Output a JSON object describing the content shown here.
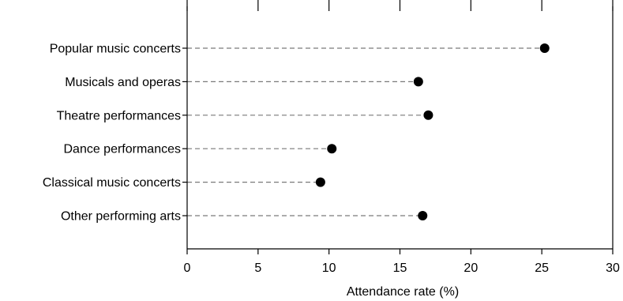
{
  "chart_data": {
    "type": "scatter",
    "title": "",
    "xlabel": "Attendance rate (%)",
    "ylabel": "",
    "xlim": [
      0,
      30
    ],
    "x_ticks": [
      "0",
      "5",
      "10",
      "15",
      "20",
      "25",
      "30"
    ],
    "grid": false,
    "categories": [
      "Popular music concerts",
      "Musicals and operas",
      "Theatre performances",
      "Dance performances",
      "Classical music concerts",
      "Other performing arts"
    ],
    "values": [
      25.2,
      16.3,
      17.0,
      10.2,
      9.4,
      16.6
    ],
    "colors": {
      "point": "#000000",
      "leader": "#7a7a7a",
      "axis": "#000000"
    }
  }
}
